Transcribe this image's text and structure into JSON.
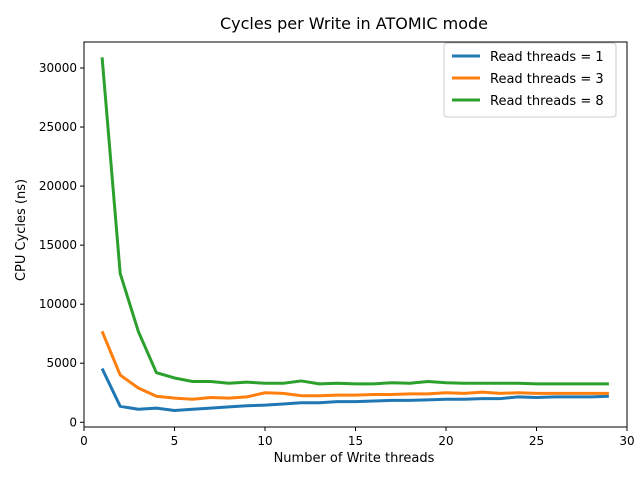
{
  "chart_data": {
    "type": "line",
    "title": "Cycles per Write in ATOMIC mode",
    "xlabel": "Number of Write threads",
    "ylabel": "CPU Cycles (ns)",
    "xlim": [
      0,
      30
    ],
    "ylim": [
      0,
      32000
    ],
    "xticks": [
      0,
      5,
      10,
      15,
      20,
      25,
      30
    ],
    "yticks": [
      0,
      5000,
      10000,
      15000,
      20000,
      25000,
      30000
    ],
    "grid": false,
    "legend_position": "top-right",
    "x": [
      1,
      2,
      3,
      4,
      5,
      6,
      7,
      8,
      9,
      10,
      11,
      12,
      13,
      14,
      15,
      16,
      17,
      18,
      19,
      20,
      21,
      22,
      23,
      24,
      25,
      26,
      27,
      28,
      29
    ],
    "series": [
      {
        "name": "Read threads = 1",
        "color": "#1f77b4",
        "values": [
          4550,
          1350,
          1100,
          1200,
          1000,
          1100,
          1200,
          1300,
          1400,
          1450,
          1550,
          1650,
          1650,
          1750,
          1750,
          1800,
          1850,
          1850,
          1900,
          1950,
          1950,
          2000,
          2000,
          2150,
          2100,
          2150,
          2150,
          2150,
          2200
        ]
      },
      {
        "name": "Read threads = 3",
        "color": "#ff7f0e",
        "values": [
          7700,
          4000,
          2900,
          2200,
          2050,
          1950,
          2100,
          2050,
          2150,
          2500,
          2450,
          2250,
          2250,
          2300,
          2300,
          2350,
          2350,
          2400,
          2400,
          2500,
          2450,
          2550,
          2450,
          2500,
          2450,
          2450,
          2450,
          2450,
          2450
        ]
      },
      {
        "name": "Read threads = 8",
        "color": "#2ca02c",
        "values": [
          30900,
          12600,
          7700,
          4200,
          3750,
          3450,
          3450,
          3300,
          3400,
          3300,
          3300,
          3500,
          3250,
          3300,
          3250,
          3250,
          3350,
          3300,
          3450,
          3350,
          3300,
          3300,
          3300,
          3300,
          3250,
          3250,
          3250,
          3250,
          3250
        ]
      }
    ]
  }
}
